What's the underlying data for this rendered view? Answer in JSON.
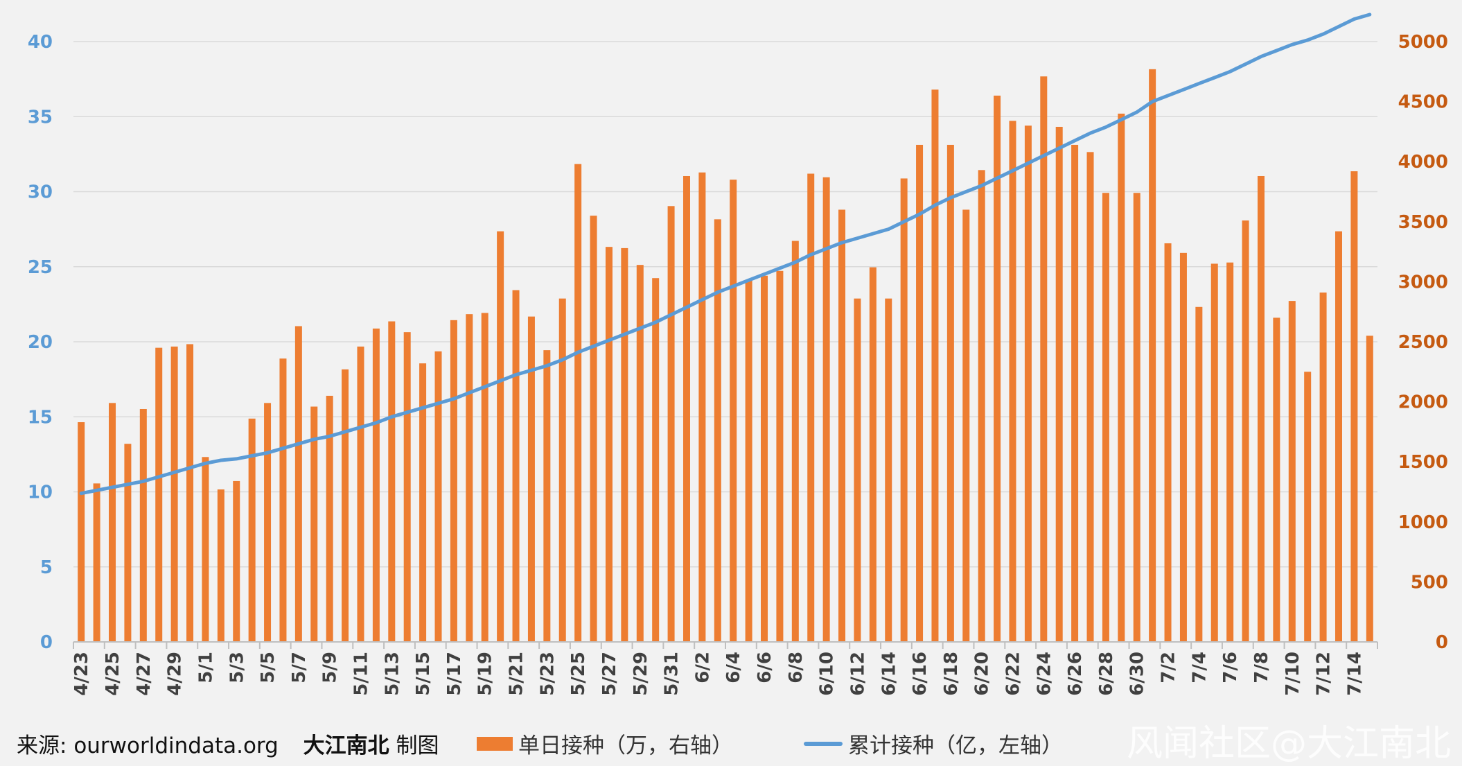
{
  "chart_data": {
    "type": "bar",
    "categories": [
      "4/23",
      "4/24",
      "4/25",
      "4/26",
      "4/27",
      "4/28",
      "4/29",
      "4/30",
      "5/1",
      "5/2",
      "5/3",
      "5/4",
      "5/5",
      "5/6",
      "5/7",
      "5/8",
      "5/9",
      "5/10",
      "5/11",
      "5/12",
      "5/13",
      "5/14",
      "5/15",
      "5/16",
      "5/17",
      "5/18",
      "5/19",
      "5/20",
      "5/21",
      "5/22",
      "5/23",
      "5/24",
      "5/25",
      "5/26",
      "5/27",
      "5/28",
      "5/29",
      "5/30",
      "5/31",
      "6/1",
      "6/2",
      "6/3",
      "6/4",
      "6/5",
      "6/6",
      "6/7",
      "6/8",
      "6/9",
      "6/10",
      "6/11",
      "6/12",
      "6/13",
      "6/14",
      "6/15",
      "6/16",
      "6/17",
      "6/18",
      "6/19",
      "6/20",
      "6/21",
      "6/22",
      "6/23",
      "6/24",
      "6/25",
      "6/26",
      "6/27",
      "6/28",
      "6/29",
      "6/30",
      "7/1",
      "7/2",
      "7/3",
      "7/4",
      "7/5",
      "7/6",
      "7/7",
      "7/8",
      "7/9",
      "7/10",
      "7/11",
      "7/12",
      "7/13",
      "7/14",
      "7/15"
    ],
    "tick_labels": [
      "4/23",
      "4/25",
      "4/27",
      "4/29",
      "5/1",
      "5/3",
      "5/5",
      "5/7",
      "5/9",
      "5/11",
      "5/13",
      "5/15",
      "5/17",
      "5/19",
      "5/21",
      "5/23",
      "5/25",
      "5/27",
      "5/29",
      "5/31",
      "6/2",
      "6/4",
      "6/6",
      "6/8",
      "6/10",
      "6/12",
      "6/14",
      "6/16",
      "6/18",
      "6/20",
      "6/22",
      "6/24",
      "6/26",
      "6/28",
      "6/30",
      "7/2",
      "7/4",
      "7/6",
      "7/8",
      "7/10",
      "7/12",
      "7/14"
    ],
    "series": [
      {
        "name": "单日接种（万，右轴）",
        "type": "bar",
        "axis": "right",
        "color": "#ed7d31",
        "values": [
          1830,
          1320,
          1990,
          1650,
          1940,
          2450,
          2460,
          2480,
          1540,
          1270,
          1340,
          1860,
          1990,
          2360,
          2630,
          1960,
          2050,
          2270,
          2460,
          2610,
          2670,
          2580,
          2320,
          2420,
          2680,
          2730,
          2740,
          3420,
          2930,
          2710,
          2430,
          2860,
          3980,
          3550,
          3290,
          3280,
          3140,
          3030,
          3630,
          3880,
          3910,
          3520,
          3850,
          3010,
          3050,
          3090,
          3340,
          3900,
          3870,
          3600,
          2860,
          3120,
          2860,
          3860,
          4140,
          4600,
          4140,
          3600,
          3930,
          4550,
          4340,
          4300,
          4710,
          4290,
          4140,
          4080,
          3740,
          4400,
          3740,
          4770,
          3320,
          3240,
          2790,
          3150,
          3160,
          3510,
          3880,
          2700,
          2840,
          2250,
          2910,
          3420,
          3920,
          2550
        ]
      },
      {
        "name": "累计接种（亿，左轴）",
        "type": "line",
        "axis": "left",
        "color": "#5b9bd5",
        "values": [
          9.9,
          10.1,
          10.3,
          10.5,
          10.7,
          11.0,
          11.3,
          11.6,
          11.9,
          12.1,
          12.2,
          12.4,
          12.6,
          12.9,
          13.2,
          13.5,
          13.7,
          14.0,
          14.3,
          14.6,
          15.0,
          15.3,
          15.6,
          15.9,
          16.2,
          16.6,
          17.0,
          17.4,
          17.8,
          18.1,
          18.4,
          18.8,
          19.3,
          19.7,
          20.1,
          20.5,
          20.9,
          21.3,
          21.8,
          22.3,
          22.8,
          23.3,
          23.7,
          24.1,
          24.5,
          24.9,
          25.3,
          25.8,
          26.2,
          26.6,
          26.9,
          27.2,
          27.5,
          28.0,
          28.5,
          29.1,
          29.6,
          30.0,
          30.4,
          30.9,
          31.4,
          31.9,
          32.4,
          32.9,
          33.4,
          33.9,
          34.3,
          34.8,
          35.3,
          36.0,
          36.4,
          36.8,
          37.2,
          37.6,
          38.0,
          38.5,
          39.0,
          39.4,
          39.8,
          40.1,
          40.5,
          41.0,
          41.5,
          41.8
        ]
      }
    ],
    "y_left": {
      "ticks": [
        0,
        5,
        10,
        15,
        20,
        25,
        30,
        35,
        40
      ],
      "range": [
        0,
        40
      ],
      "color": "#5b9bd5"
    },
    "y_right": {
      "ticks": [
        0,
        500,
        1000,
        1500,
        2000,
        2500,
        3000,
        3500,
        4000,
        4500,
        5000
      ],
      "range": [
        0,
        5000
      ],
      "color": "#c55a11"
    },
    "grid": true,
    "legend_placement": "bottom"
  },
  "footer": {
    "source_label": "来源:",
    "source_url": "ourworldindata.org",
    "brand": "大江南北",
    "made_by": "制图"
  },
  "legend": {
    "bar_label": "单日接种（万，右轴）",
    "line_label": "累计接种（亿，左轴）"
  },
  "watermark": "风闻社区@大江南北"
}
